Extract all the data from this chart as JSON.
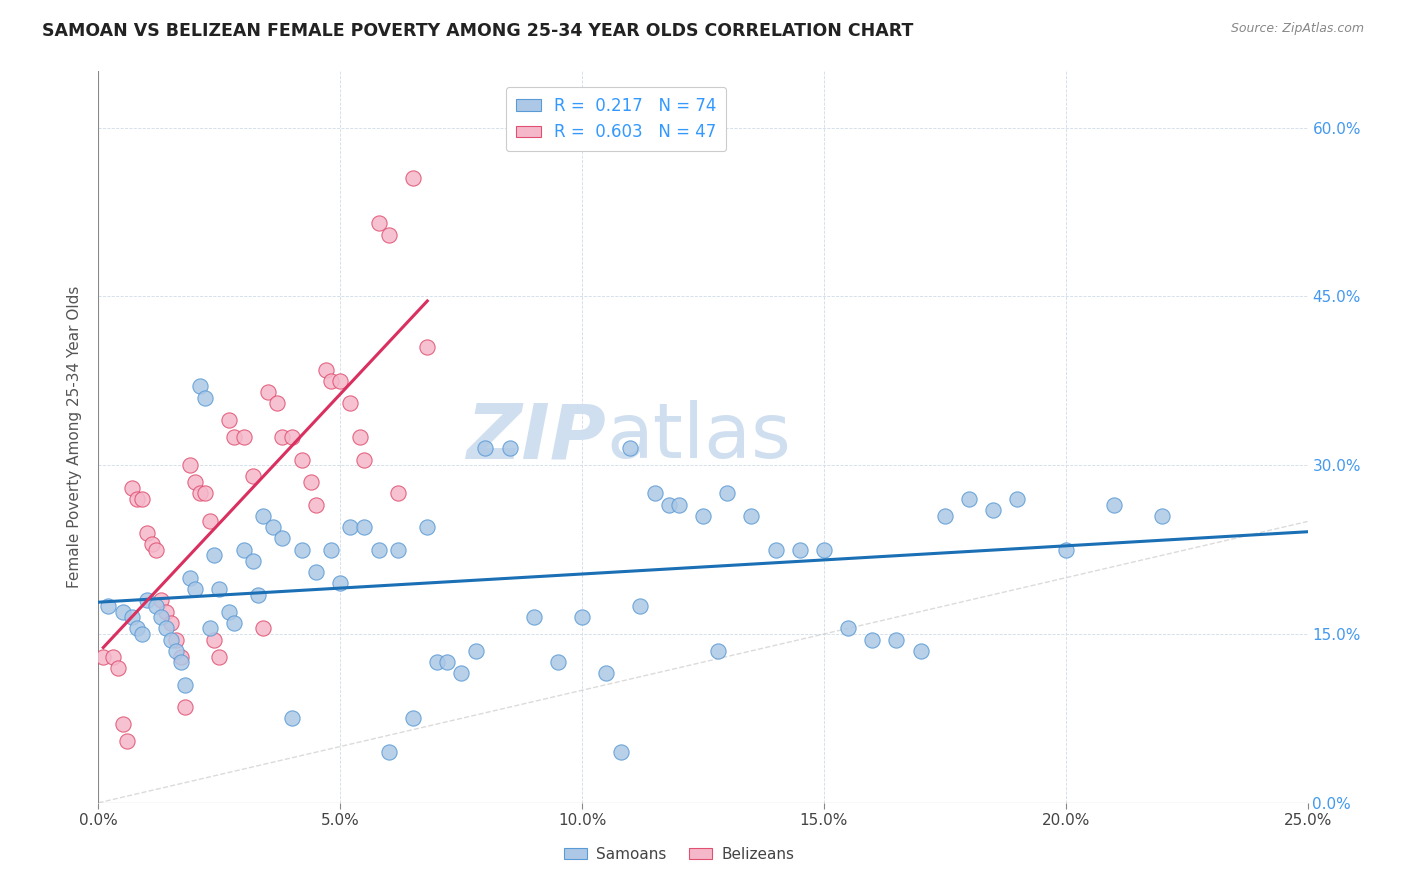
{
  "title": "SAMOAN VS BELIZEAN FEMALE POVERTY AMONG 25-34 YEAR OLDS CORRELATION CHART",
  "source": "Source: ZipAtlas.com",
  "ylabel": "Female Poverty Among 25-34 Year Olds",
  "samoan_R": 0.217,
  "samoan_N": 74,
  "belizean_R": 0.603,
  "belizean_N": 47,
  "samoan_color": "#adc8e6",
  "belizean_color": "#f5b8cb",
  "samoan_edge_color": "#5b9bd5",
  "belizean_edge_color": "#e05070",
  "samoan_line_color": "#1a6fb5",
  "belizean_line_color": "#d93060",
  "diagonal_color": "#cccccc",
  "watermark_color": "#d0dff0",
  "background_color": "#ffffff",
  "legend_text_color": "#3399ff",
  "tick_label_color": "#4499ee",
  "xlabel_color": "#444444",
  "xlim": [
    0.0,
    0.25
  ],
  "ylim": [
    0.0,
    0.65
  ],
  "xtick_vals": [
    0.0,
    0.05,
    0.1,
    0.15,
    0.2,
    0.25
  ],
  "xtick_labels": [
    "0.0%",
    "5.0%",
    "10.0%",
    "15.0%",
    "20.0%",
    "25.0%"
  ],
  "ytick_vals": [
    0.0,
    0.15,
    0.3,
    0.45,
    0.6
  ],
  "ytick_labels": [
    "0.0%",
    "15.0%",
    "30.0%",
    "45.0%",
    "60.0%"
  ],
  "samoan_x": [
    0.002,
    0.005,
    0.007,
    0.008,
    0.009,
    0.01,
    0.012,
    0.013,
    0.014,
    0.015,
    0.016,
    0.017,
    0.018,
    0.019,
    0.02,
    0.021,
    0.022,
    0.023,
    0.024,
    0.025,
    0.027,
    0.028,
    0.03,
    0.032,
    0.033,
    0.034,
    0.036,
    0.038,
    0.04,
    0.042,
    0.045,
    0.048,
    0.05,
    0.052,
    0.055,
    0.058,
    0.06,
    0.062,
    0.065,
    0.068,
    0.07,
    0.072,
    0.075,
    0.078,
    0.08,
    0.085,
    0.09,
    0.095,
    0.1,
    0.105,
    0.108,
    0.11,
    0.112,
    0.115,
    0.118,
    0.12,
    0.125,
    0.128,
    0.13,
    0.135,
    0.14,
    0.145,
    0.15,
    0.155,
    0.16,
    0.165,
    0.17,
    0.175,
    0.18,
    0.185,
    0.19,
    0.2,
    0.21,
    0.22
  ],
  "samoan_y": [
    0.175,
    0.17,
    0.165,
    0.155,
    0.15,
    0.18,
    0.175,
    0.165,
    0.155,
    0.145,
    0.135,
    0.125,
    0.105,
    0.2,
    0.19,
    0.37,
    0.36,
    0.155,
    0.22,
    0.19,
    0.17,
    0.16,
    0.225,
    0.215,
    0.185,
    0.255,
    0.245,
    0.235,
    0.075,
    0.225,
    0.205,
    0.225,
    0.195,
    0.245,
    0.245,
    0.225,
    0.045,
    0.225,
    0.075,
    0.245,
    0.125,
    0.125,
    0.115,
    0.135,
    0.315,
    0.315,
    0.165,
    0.125,
    0.165,
    0.115,
    0.045,
    0.315,
    0.175,
    0.275,
    0.265,
    0.265,
    0.255,
    0.135,
    0.275,
    0.255,
    0.225,
    0.225,
    0.225,
    0.155,
    0.145,
    0.145,
    0.135,
    0.255,
    0.27,
    0.26,
    0.27,
    0.225,
    0.265,
    0.255
  ],
  "belizean_x": [
    0.001,
    0.003,
    0.004,
    0.005,
    0.006,
    0.007,
    0.008,
    0.009,
    0.01,
    0.011,
    0.012,
    0.013,
    0.014,
    0.015,
    0.016,
    0.017,
    0.018,
    0.019,
    0.02,
    0.021,
    0.022,
    0.023,
    0.024,
    0.025,
    0.027,
    0.028,
    0.03,
    0.032,
    0.034,
    0.035,
    0.037,
    0.038,
    0.04,
    0.042,
    0.044,
    0.045,
    0.047,
    0.048,
    0.05,
    0.052,
    0.054,
    0.055,
    0.058,
    0.06,
    0.062,
    0.065,
    0.068
  ],
  "belizean_y": [
    0.13,
    0.13,
    0.12,
    0.07,
    0.055,
    0.28,
    0.27,
    0.27,
    0.24,
    0.23,
    0.225,
    0.18,
    0.17,
    0.16,
    0.145,
    0.13,
    0.085,
    0.3,
    0.285,
    0.275,
    0.275,
    0.25,
    0.145,
    0.13,
    0.34,
    0.325,
    0.325,
    0.29,
    0.155,
    0.365,
    0.355,
    0.325,
    0.325,
    0.305,
    0.285,
    0.265,
    0.385,
    0.375,
    0.375,
    0.355,
    0.325,
    0.305,
    0.515,
    0.505,
    0.275,
    0.555,
    0.405
  ]
}
